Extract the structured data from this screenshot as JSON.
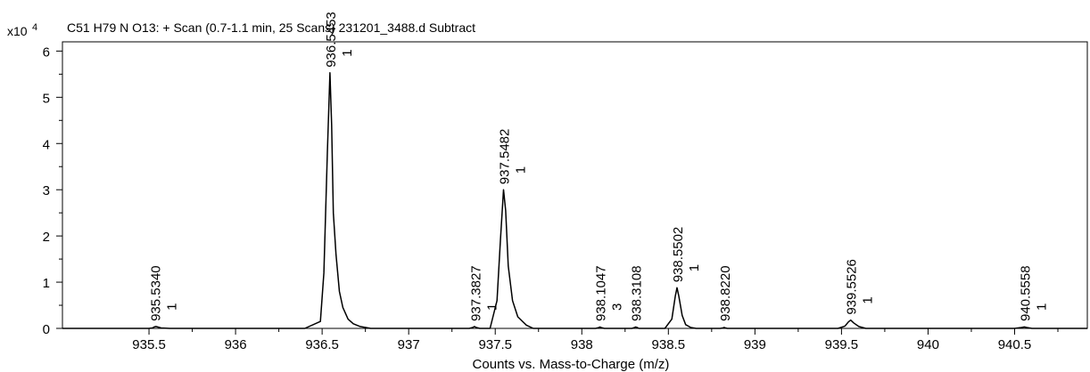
{
  "chart_data": {
    "type": "line",
    "title": "C51 H79 N O13: + Scan (0.7-1.1 min, 25 Scans) 231201_3488.d  Subtract",
    "xlabel": "Counts vs. Mass-to-Charge (m/z)",
    "ylabel": "",
    "y_multiplier_label": "x10",
    "y_multiplier_exponent": "4",
    "xlim": [
      935.0,
      940.92
    ],
    "ylim": [
      0,
      6.2
    ],
    "xticks": [
      935.5,
      936,
      936.5,
      937,
      937.5,
      938,
      938.5,
      939,
      939.5,
      940,
      940.5
    ],
    "xtick_labels": [
      "935.5",
      "936",
      "936.5",
      "937",
      "937.5",
      "938",
      "938.5",
      "939",
      "939.5",
      "940",
      "940.5"
    ],
    "yticks": [
      0,
      1,
      2,
      3,
      4,
      5,
      6
    ],
    "ytick_labels": [
      "0",
      "1",
      "2",
      "3",
      "4",
      "5",
      "6"
    ],
    "grid": false,
    "legend": "none",
    "series": [
      {
        "x": [
          935.0,
          935.5,
          935.52,
          935.53,
          935.54,
          935.55,
          935.57,
          935.62,
          936.4,
          936.49,
          936.51,
          936.53,
          936.545,
          936.555,
          936.565,
          936.58,
          936.6,
          936.62,
          936.65,
          936.68,
          936.72,
          936.78,
          937.35,
          937.37,
          937.38,
          937.39,
          937.41,
          937.47,
          937.51,
          937.53,
          937.548,
          937.56,
          937.575,
          937.6,
          937.63,
          937.68,
          937.72,
          938.08,
          938.1,
          938.105,
          938.11,
          938.13,
          938.29,
          938.305,
          938.311,
          938.32,
          938.33,
          938.48,
          938.52,
          938.54,
          938.55,
          938.56,
          938.58,
          938.6,
          938.63,
          938.66,
          938.8,
          938.815,
          938.822,
          938.83,
          938.84,
          939.48,
          939.52,
          939.54,
          939.553,
          939.57,
          939.6,
          939.64,
          940.5,
          940.54,
          940.556,
          940.57,
          940.6,
          940.92
        ],
        "y": [
          0,
          0,
          0.01,
          0.03,
          0.04,
          0.03,
          0.01,
          0,
          0,
          0.15,
          1.2,
          3.8,
          5.53,
          4.4,
          2.5,
          1.6,
          0.8,
          0.45,
          0.2,
          0.1,
          0.04,
          0,
          0,
          0.02,
          0.04,
          0.02,
          0,
          0,
          0.6,
          1.9,
          3.0,
          2.55,
          1.35,
          0.6,
          0.25,
          0.07,
          0,
          0,
          0.02,
          0.03,
          0.02,
          0,
          0,
          0.02,
          0.03,
          0.02,
          0,
          0,
          0.2,
          0.7,
          0.88,
          0.7,
          0.28,
          0.08,
          0.02,
          0,
          0,
          0.01,
          0.02,
          0.01,
          0,
          0,
          0.05,
          0.14,
          0.18,
          0.12,
          0.04,
          0,
          0,
          0.02,
          0.03,
          0.02,
          0,
          0
        ]
      }
    ],
    "annotations": [
      {
        "x": 935.534,
        "y": 0.04,
        "label": "935.5340",
        "charge": "1"
      },
      {
        "x": 936.5453,
        "y": 5.53,
        "label": "936.5453",
        "charge": "1"
      },
      {
        "x": 937.3827,
        "y": 0.04,
        "label": "937.3827",
        "charge": "1"
      },
      {
        "x": 937.5482,
        "y": 3.0,
        "label": "937.5482",
        "charge": "1"
      },
      {
        "x": 938.1047,
        "y": 0.03,
        "label": "938.1047",
        "charge": "3"
      },
      {
        "x": 938.3108,
        "y": 0.03,
        "label": "938.3108",
        "charge": ""
      },
      {
        "x": 938.5502,
        "y": 0.88,
        "label": "938.5502",
        "charge": "1"
      },
      {
        "x": 938.822,
        "y": 0.02,
        "label": "938.8220",
        "charge": ""
      },
      {
        "x": 939.5526,
        "y": 0.18,
        "label": "939.5526",
        "charge": "1"
      },
      {
        "x": 940.5558,
        "y": 0.03,
        "label": "940.5558",
        "charge": "1"
      }
    ]
  }
}
